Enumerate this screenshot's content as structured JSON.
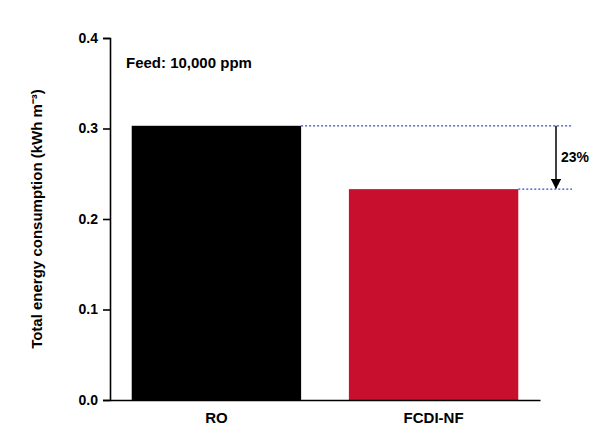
{
  "chart_data": {
    "type": "bar",
    "y_label": "Total energy consumption (kWh m⁻³)",
    "annotations": [
      "Feed: 10,000 ppm",
      "23%"
    ],
    "categories": [
      "RO",
      "FCDI-NF"
    ],
    "values": [
      0.303,
      0.233
    ],
    "colors": [
      "#000000",
      "#c8102e"
    ],
    "ylim": [
      0,
      0.4
    ],
    "yticks": [
      {
        "value": 0,
        "label": "0.0"
      },
      0.1,
      0.2,
      0.3,
      0.4
    ],
    "grid": false
  }
}
